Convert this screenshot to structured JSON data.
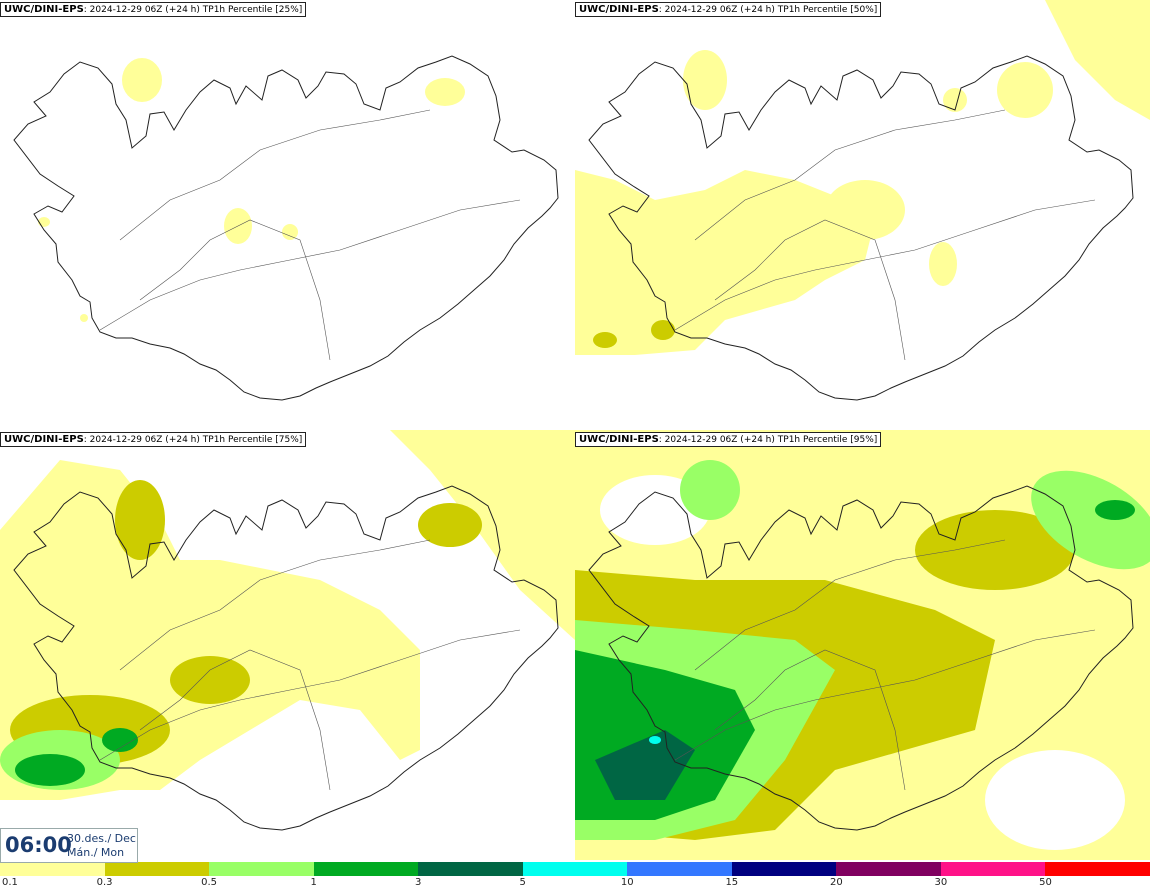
{
  "panels": [
    {
      "model": "UWC/DINI-EPS",
      "run": ": 2024-12-29 06Z (+24 h)",
      "param": "TP1h Percentile [25%]"
    },
    {
      "model": "UWC/DINI-EPS",
      "run": ": 2024-12-29 06Z (+24 h)",
      "param": "TP1h Percentile [50%]"
    },
    {
      "model": "UWC/DINI-EPS",
      "run": ": 2024-12-29 06Z (+24 h)",
      "param": "TP1h Percentile [75%]"
    },
    {
      "model": "UWC/DINI-EPS",
      "run": ": 2024-12-29 06Z (+24 h)",
      "param": "TP1h Percentile [95%]"
    }
  ],
  "valid": {
    "time": "06:00",
    "date_line1": "30.des./ Dec",
    "date_line2": "Mán./ Mon"
  },
  "colorbar": {
    "colors": [
      "#ffff99",
      "#cccc00",
      "#99ff66",
      "#00aa22",
      "#006644",
      "#00ffee",
      "#3377ff",
      "#000080",
      "#800060",
      "#ff1188",
      "#ff0000"
    ],
    "labels": [
      "0.1",
      "0.3",
      "0.5",
      "1",
      "3",
      "5",
      "10",
      "15",
      "20",
      "30",
      "50"
    ]
  }
}
